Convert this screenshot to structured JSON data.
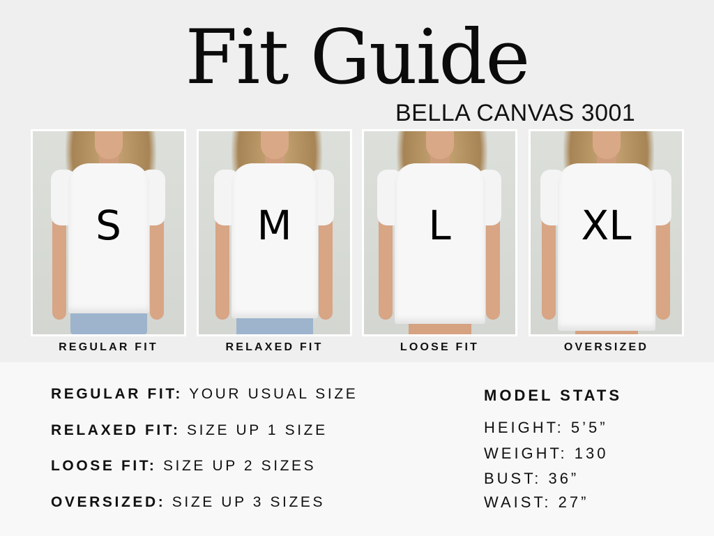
{
  "title": "Fit Guide",
  "subtitle": "BELLA CANVAS 3001",
  "panels": [
    {
      "size": "S",
      "caption": "REGULAR FIT"
    },
    {
      "size": "M",
      "caption": "RELAXED FIT"
    },
    {
      "size": "L",
      "caption": "LOOSE FIT"
    },
    {
      "size": "XL",
      "caption": "OVERSIZED"
    }
  ],
  "fits": [
    {
      "label": "REGULAR FIT:",
      "value": "YOUR USUAL SIZE"
    },
    {
      "label": "RELAXED FIT:",
      "value": "SIZE UP 1 SIZE"
    },
    {
      "label": "LOOSE FIT:",
      "value": "SIZE UP 2 SIZES"
    },
    {
      "label": "OVERSIZED:",
      "value": "SIZE UP 3 SIZES"
    }
  ],
  "model_stats": {
    "title": "MODEL STATS",
    "lines": [
      "HEIGHT: 5’5”",
      "WEIGHT: 130",
      "BUST: 36”",
      "WAIST: 27”"
    ]
  }
}
